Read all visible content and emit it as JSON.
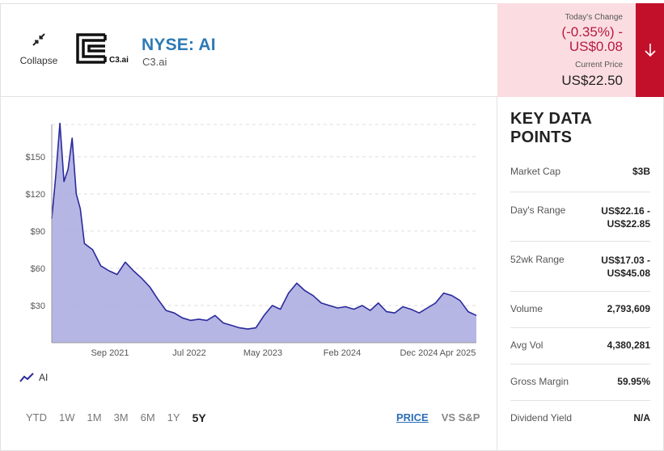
{
  "header": {
    "collapse_label": "Collapse",
    "logo_text": "C3.ai",
    "ticker": "NYSE: AI",
    "company": "C3.ai"
  },
  "price": {
    "todays_change_label": "Today's Change",
    "change_pct": "(-0.35%) -",
    "change_value": "US$0.08",
    "current_price_label": "Current Price",
    "current_price": "US$22.50",
    "direction_icon": "arrow-down-icon"
  },
  "colors": {
    "accent_red": "#c2102b",
    "price_panel_bg": "#fbdde1",
    "chart_line": "#2a2a9c",
    "chart_fill": "#a9a9e1",
    "ticker_blue": "#2c7ab5"
  },
  "chart_data": {
    "type": "area",
    "x_tick_labels": [
      "Sep 2021",
      "Jul 2022",
      "May 2023",
      "Feb 2024",
      "Dec 2024",
      "Apr 2025"
    ],
    "y_tick_labels": [
      "$150",
      "$120",
      "$90",
      "$60",
      "$30"
    ],
    "ylim": [
      0,
      176
    ],
    "grid": true,
    "legend": "bottom-left",
    "series": [
      {
        "name": "AI",
        "x": [
          "2020-12",
          "2020-12",
          "2021-01",
          "2021-01",
          "2021-02",
          "2021-02",
          "2021-03",
          "2021-03",
          "2021-04",
          "2021-05",
          "2021-06",
          "2021-07",
          "2021-08",
          "2021-09",
          "2021-10",
          "2021-11",
          "2021-12",
          "2022-01",
          "2022-02",
          "2022-03",
          "2022-04",
          "2022-05",
          "2022-06",
          "2022-07",
          "2022-08",
          "2022-09",
          "2022-10",
          "2022-11",
          "2022-12",
          "2023-01",
          "2023-02",
          "2023-03",
          "2023-04",
          "2023-05",
          "2023-06",
          "2023-07",
          "2023-08",
          "2023-09",
          "2023-10",
          "2023-11",
          "2023-12",
          "2024-01",
          "2024-02",
          "2024-03",
          "2024-04",
          "2024-05",
          "2024-06",
          "2024-07",
          "2024-08",
          "2024-09",
          "2024-10",
          "2024-11",
          "2024-12",
          "2025-01",
          "2025-02",
          "2025-03",
          "2025-04"
        ],
        "y": [
          100,
          135,
          177,
          130,
          140,
          165,
          120,
          108,
          80,
          75,
          62,
          58,
          55,
          65,
          58,
          52,
          45,
          35,
          26,
          24,
          20,
          18,
          19,
          18,
          22,
          16,
          14,
          12,
          11,
          12,
          22,
          30,
          27,
          40,
          48,
          42,
          38,
          32,
          30,
          28,
          29,
          27,
          30,
          26,
          32,
          25,
          24,
          29,
          27,
          24,
          28,
          32,
          40,
          38,
          34,
          25,
          22
        ]
      }
    ]
  },
  "ranges": [
    "YTD",
    "1W",
    "1M",
    "3M",
    "6M",
    "1Y",
    "5Y"
  ],
  "active_range": "5Y",
  "modes": {
    "price": "PRICE",
    "vs_sp": "VS S&P"
  },
  "key_data": {
    "title": "KEY DATA POINTS",
    "rows": [
      {
        "label": "Market Cap",
        "value": "$3B"
      },
      {
        "label": "Day's Range",
        "value": "US$22.16 -\nUS$22.85"
      },
      {
        "label": "52wk Range",
        "value": "US$17.03 -\nUS$45.08"
      },
      {
        "label": "Volume",
        "value": "2,793,609"
      },
      {
        "label": "Avg Vol",
        "value": "4,380,281"
      },
      {
        "label": "Gross Margin",
        "value": "59.95%"
      },
      {
        "label": "Dividend Yield",
        "value": "N/A"
      }
    ]
  }
}
